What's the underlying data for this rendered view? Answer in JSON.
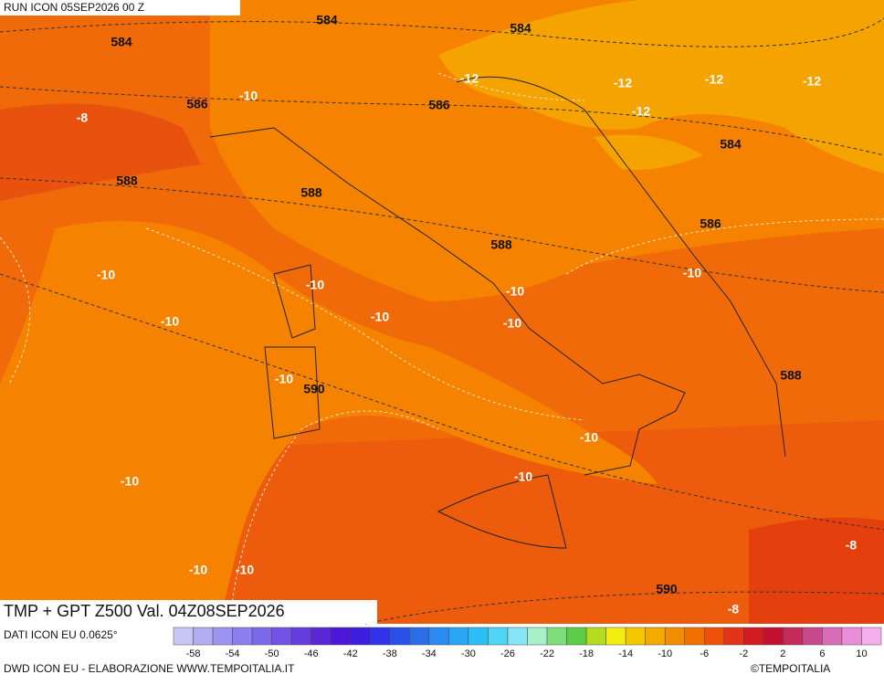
{
  "header": {
    "run": "RUN ICON 05SEP2026 00 Z",
    "field": "TMP + GPT Z500 Val. 04Z08SEP2026"
  },
  "map_labels": [
    "584",
    "584",
    "584",
    "586",
    "-10",
    "-8",
    "-12",
    "586",
    "-12",
    "-12",
    "-12",
    "-12",
    "584",
    "588",
    "588",
    "586",
    "588",
    "-10",
    "-10",
    "-10",
    "-10",
    "-10",
    "-10",
    "-10",
    "588",
    "-10",
    "590",
    "-10",
    "-10",
    "-10",
    "-8",
    "-10",
    "-10",
    "590",
    "-8"
  ],
  "colorbar": {
    "colors": [
      "#c8c8f5",
      "#b2aef2",
      "#9c94f0",
      "#8c7eee",
      "#7e68ea",
      "#7052e6",
      "#643cdc",
      "#5a26d6",
      "#4c18d8",
      "#3e1ee0",
      "#3232e8",
      "#2850e6",
      "#2a6ee8",
      "#2a8af0",
      "#28a6f2",
      "#2ac0f4",
      "#4ed4f4",
      "#86e6f6",
      "#a8f0c8",
      "#7ede7a",
      "#5acc46",
      "#b4dc1e",
      "#f2ee10",
      "#f4c800",
      "#f4aa00",
      "#f28c00",
      "#f07000",
      "#ee5208",
      "#e23418",
      "#d21c22",
      "#c4102e",
      "#c42a5a",
      "#c84a8c",
      "#d86cb8",
      "#ea8ed8",
      "#f4b0ee"
    ],
    "ticks": [
      -58,
      -54,
      -50,
      -46,
      -42,
      -38,
      -34,
      -30,
      -26,
      -22,
      -18,
      -14,
      -10,
      -6,
      -2,
      2,
      6,
      10
    ]
  },
  "footer": {
    "source": "DATI ICON EU 0.0625°",
    "credit": "DWD ICON EU - ELABORAZIONE WWW.TEMPOITALIA.IT",
    "brand": "©TEMPOITALIA"
  }
}
